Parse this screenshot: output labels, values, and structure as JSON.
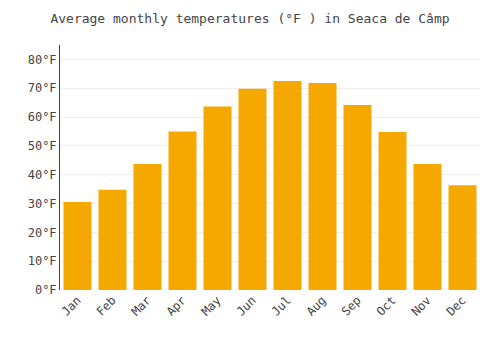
{
  "chart_data": {
    "type": "bar",
    "title": "Average monthly temperatures (°F ) in Seaca de Câmp",
    "categories": [
      "Jan",
      "Feb",
      "Mar",
      "Apr",
      "May",
      "Jun",
      "Jul",
      "Aug",
      "Sep",
      "Oct",
      "Nov",
      "Dec"
    ],
    "values": [
      30.5,
      34.8,
      43.7,
      55.0,
      63.7,
      69.8,
      72.5,
      71.8,
      64.2,
      54.8,
      43.7,
      36.3
    ],
    "color": "#F5A800",
    "ylim": [
      0,
      85
    ],
    "yticks": [
      {
        "value": 0,
        "label": "0°F"
      },
      {
        "value": 10,
        "label": "10°F"
      },
      {
        "value": 20,
        "label": "20°F"
      },
      {
        "value": 30,
        "label": "30°F"
      },
      {
        "value": 40,
        "label": "40°F"
      },
      {
        "value": 50,
        "label": "50°F"
      },
      {
        "value": 60,
        "label": "60°F"
      },
      {
        "value": 70,
        "label": "70°F"
      },
      {
        "value": 80,
        "label": "80°F"
      }
    ],
    "grid": true
  }
}
